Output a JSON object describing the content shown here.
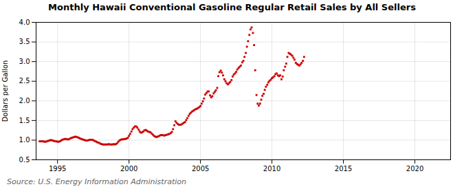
{
  "chart_data": {
    "type": "scatter",
    "title": "Monthly Hawaii Conventional Gasoline Regular Retail Sales by All Sellers",
    "ylabel": "Dollars per Gallon",
    "annotation": "Source: U.S. Energy Information Administration",
    "color": "#cc0000",
    "marker": "square",
    "grid": true,
    "xlim": [
      1993.5,
      2022.5
    ],
    "ylim": [
      0.5,
      4.0
    ],
    "xticks": [
      1995,
      2000,
      2005,
      2010,
      2015,
      2020
    ],
    "yticks": [
      0.5,
      {
        "value": 1.0,
        "label": "1.0"
      },
      1.5,
      {
        "value": 2.0,
        "label": "2.0"
      },
      2.5,
      {
        "value": 3.0,
        "label": "3.0"
      },
      3.5,
      {
        "value": 4.0,
        "label": "4.0"
      }
    ],
    "x": [
      1993.75,
      1993.83,
      1993.92,
      1994.0,
      1994.08,
      1994.17,
      1994.25,
      1994.33,
      1994.42,
      1994.5,
      1994.58,
      1994.67,
      1994.75,
      1994.83,
      1994.92,
      1995.0,
      1995.08,
      1995.17,
      1995.25,
      1995.33,
      1995.42,
      1995.5,
      1995.58,
      1995.67,
      1995.75,
      1995.83,
      1995.92,
      1996.0,
      1996.08,
      1996.17,
      1996.25,
      1996.33,
      1996.42,
      1996.5,
      1996.58,
      1996.67,
      1996.75,
      1996.83,
      1996.92,
      1997.0,
      1997.08,
      1997.17,
      1997.25,
      1997.33,
      1997.42,
      1997.5,
      1997.58,
      1997.67,
      1997.75,
      1997.83,
      1997.92,
      1998.0,
      1998.08,
      1998.17,
      1998.25,
      1998.33,
      1998.42,
      1998.5,
      1998.58,
      1998.67,
      1998.75,
      1998.83,
      1998.92,
      1999.0,
      1999.08,
      1999.17,
      1999.25,
      1999.33,
      1999.42,
      1999.5,
      1999.58,
      1999.67,
      1999.75,
      1999.83,
      1999.92,
      2000.0,
      2000.08,
      2000.17,
      2000.25,
      2000.33,
      2000.42,
      2000.5,
      2000.58,
      2000.67,
      2000.75,
      2000.83,
      2000.92,
      2001.0,
      2001.08,
      2001.17,
      2001.25,
      2001.33,
      2001.42,
      2001.5,
      2001.58,
      2001.67,
      2001.75,
      2001.83,
      2001.92,
      2002.0,
      2002.08,
      2002.17,
      2002.25,
      2002.33,
      2002.42,
      2002.5,
      2002.58,
      2002.67,
      2002.75,
      2002.83,
      2002.92,
      2003.0,
      2003.08,
      2003.17,
      2003.25,
      2003.33,
      2003.42,
      2003.5,
      2003.58,
      2003.67,
      2003.75,
      2003.83,
      2003.92,
      2004.0,
      2004.08,
      2004.17,
      2004.25,
      2004.33,
      2004.42,
      2004.5,
      2004.58,
      2004.67,
      2004.75,
      2004.83,
      2004.92,
      2005.0,
      2005.08,
      2005.17,
      2005.25,
      2005.33,
      2005.42,
      2005.5,
      2005.58,
      2005.67,
      2005.75,
      2005.83,
      2005.92,
      2006.0,
      2006.08,
      2006.17,
      2006.25,
      2006.33,
      2006.42,
      2006.5,
      2006.58,
      2006.67,
      2006.75,
      2006.83,
      2006.92,
      2007.0,
      2007.08,
      2007.17,
      2007.25,
      2007.33,
      2007.42,
      2007.5,
      2007.58,
      2007.67,
      2007.75,
      2007.83,
      2007.92,
      2008.0,
      2008.08,
      2008.17,
      2008.25,
      2008.33,
      2008.42,
      2008.5,
      2008.58,
      2008.67,
      2008.75,
      2008.83,
      2008.92,
      2009.0,
      2009.08,
      2009.17,
      2009.25,
      2009.33,
      2009.42,
      2009.5,
      2009.58,
      2009.67,
      2009.75,
      2009.83,
      2009.92,
      2010.0,
      2010.08,
      2010.17,
      2010.25,
      2010.33,
      2010.42,
      2010.5,
      2010.58,
      2010.67,
      2010.75,
      2010.83,
      2010.92,
      2011.0,
      2011.08,
      2011.17,
      2011.25,
      2011.33,
      2011.42,
      2011.5,
      2011.58,
      2011.67,
      2011.75,
      2011.83,
      2011.92,
      2012.0,
      2012.08,
      2012.17,
      2012.25
    ],
    "values": [
      0.97,
      0.97,
      0.97,
      0.97,
      0.96,
      0.96,
      0.97,
      0.98,
      0.99,
      1.0,
      1.0,
      0.99,
      0.98,
      0.97,
      0.97,
      0.96,
      0.96,
      0.97,
      0.99,
      1.01,
      1.02,
      1.03,
      1.03,
      1.02,
      1.02,
      1.03,
      1.05,
      1.06,
      1.07,
      1.08,
      1.09,
      1.08,
      1.07,
      1.06,
      1.04,
      1.03,
      1.02,
      1.01,
      1.0,
      0.99,
      0.99,
      1.0,
      1.01,
      1.01,
      1.01,
      1.0,
      0.98,
      0.97,
      0.95,
      0.94,
      0.93,
      0.91,
      0.9,
      0.89,
      0.89,
      0.89,
      0.89,
      0.89,
      0.9,
      0.89,
      0.89,
      0.89,
      0.9,
      0.89,
      0.9,
      0.92,
      0.96,
      0.99,
      1.01,
      1.02,
      1.02,
      1.03,
      1.03,
      1.04,
      1.06,
      1.11,
      1.16,
      1.22,
      1.28,
      1.32,
      1.35,
      1.35,
      1.32,
      1.27,
      1.22,
      1.19,
      1.2,
      1.22,
      1.25,
      1.26,
      1.24,
      1.22,
      1.21,
      1.2,
      1.17,
      1.14,
      1.11,
      1.09,
      1.08,
      1.09,
      1.1,
      1.12,
      1.13,
      1.13,
      1.12,
      1.12,
      1.13,
      1.14,
      1.15,
      1.16,
      1.18,
      1.21,
      1.28,
      1.38,
      1.48,
      1.44,
      1.41,
      1.39,
      1.39,
      1.4,
      1.42,
      1.44,
      1.46,
      1.51,
      1.56,
      1.62,
      1.67,
      1.7,
      1.73,
      1.75,
      1.77,
      1.79,
      1.8,
      1.82,
      1.84,
      1.87,
      1.93,
      1.99,
      2.06,
      2.16,
      2.2,
      2.24,
      2.24,
      2.14,
      2.09,
      2.12,
      2.19,
      2.23,
      2.27,
      2.33,
      2.63,
      2.73,
      2.77,
      2.72,
      2.65,
      2.55,
      2.5,
      2.45,
      2.42,
      2.45,
      2.48,
      2.53,
      2.62,
      2.67,
      2.7,
      2.74,
      2.8,
      2.84,
      2.87,
      2.9,
      2.98,
      3.02,
      3.12,
      3.22,
      3.38,
      3.52,
      3.68,
      3.82,
      3.87,
      3.73,
      3.42,
      2.78,
      2.15,
      1.93,
      1.88,
      1.93,
      2.03,
      2.13,
      2.18,
      2.28,
      2.36,
      2.41,
      2.47,
      2.51,
      2.54,
      2.58,
      2.6,
      2.63,
      2.68,
      2.7,
      2.65,
      2.63,
      2.65,
      2.55,
      2.62,
      2.78,
      2.87,
      2.95,
      3.12,
      3.22,
      3.2,
      3.18,
      3.15,
      3.1,
      3.05,
      2.97,
      2.94,
      2.92,
      2.9,
      2.93,
      2.97,
      3.02,
      3.12
    ]
  }
}
